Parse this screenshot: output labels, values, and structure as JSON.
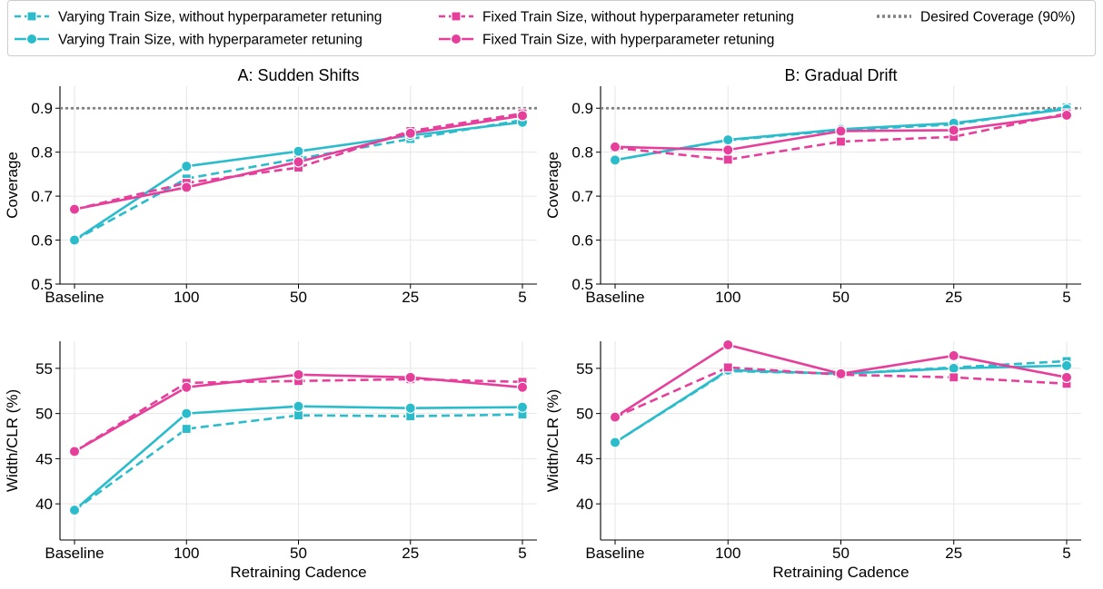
{
  "legend": {
    "position": "top",
    "entries": [
      {
        "label": "Varying Train Size, without hyperparameter retuning",
        "color": "#2bbccc",
        "dash": "dashed",
        "marker": "square"
      },
      {
        "label": "Varying Train Size, with hyperparameter retuning",
        "color": "#2bbccc",
        "dash": "solid",
        "marker": "circle"
      },
      {
        "label": "Fixed Train Size, without hyperparameter retuning",
        "color": "#e63f9b",
        "dash": "dashed",
        "marker": "square"
      },
      {
        "label": "Fixed Train Size, with hyperparameter retuning",
        "color": "#e63f9b",
        "dash": "solid",
        "marker": "circle"
      },
      {
        "label": "Desired Coverage (90%)",
        "color": "#808080",
        "dash": "dotted",
        "marker": "none"
      }
    ]
  },
  "chart_data": [
    {
      "type": "line",
      "title": "A: Sudden Shifts",
      "xlabel": "",
      "ylabel": "Coverage",
      "categories": [
        "Baseline",
        "100",
        "50",
        "25",
        "5"
      ],
      "ylim": [
        0.5,
        0.95
      ],
      "yticks": [
        "0.5",
        "0.6",
        "0.7",
        "0.8",
        "0.9"
      ],
      "grid": true,
      "reference_line": {
        "y": 0.9,
        "color": "#808080",
        "dash": "dotted"
      },
      "series": [
        {
          "values": [
            0.6,
            0.74,
            0.785,
            0.83,
            0.873
          ],
          "color": "#2bbccc",
          "dash": "dashed",
          "marker": "square"
        },
        {
          "values": [
            0.6,
            0.768,
            0.802,
            0.838,
            0.868
          ],
          "color": "#2bbccc",
          "dash": "solid",
          "marker": "circle"
        },
        {
          "values": [
            0.67,
            0.73,
            0.765,
            0.848,
            0.888
          ],
          "color": "#e63f9b",
          "dash": "dashed",
          "marker": "square"
        },
        {
          "values": [
            0.67,
            0.72,
            0.778,
            0.843,
            0.883
          ],
          "color": "#e63f9b",
          "dash": "solid",
          "marker": "circle"
        }
      ]
    },
    {
      "type": "line",
      "title": "B: Gradual Drift",
      "xlabel": "",
      "ylabel": "Coverage",
      "categories": [
        "Baseline",
        "100",
        "50",
        "25",
        "5"
      ],
      "ylim": [
        0.5,
        0.95
      ],
      "yticks": [
        "0.5",
        "0.6",
        "0.7",
        "0.8",
        "0.9"
      ],
      "grid": true,
      "reference_line": {
        "y": 0.9,
        "color": "#808080",
        "dash": "dotted"
      },
      "series": [
        {
          "values": [
            0.782,
            0.827,
            0.85,
            0.863,
            0.902
          ],
          "color": "#2bbccc",
          "dash": "dashed",
          "marker": "square"
        },
        {
          "values": [
            0.782,
            0.828,
            0.852,
            0.866,
            0.898
          ],
          "color": "#2bbccc",
          "dash": "solid",
          "marker": "circle"
        },
        {
          "values": [
            0.81,
            0.783,
            0.824,
            0.835,
            0.888
          ],
          "color": "#e63f9b",
          "dash": "dashed",
          "marker": "square"
        },
        {
          "values": [
            0.812,
            0.805,
            0.848,
            0.85,
            0.884
          ],
          "color": "#e63f9b",
          "dash": "solid",
          "marker": "circle"
        }
      ]
    },
    {
      "type": "line",
      "title": "",
      "xlabel": "Retraining Cadence",
      "ylabel": "Width/CLR (%)",
      "categories": [
        "Baseline",
        "100",
        "50",
        "25",
        "5"
      ],
      "ylim": [
        36,
        58
      ],
      "yticks": [
        "40",
        "45",
        "50",
        "55"
      ],
      "grid": true,
      "series": [
        {
          "values": [
            39.3,
            48.3,
            49.8,
            49.7,
            49.9
          ],
          "color": "#2bbccc",
          "dash": "dashed",
          "marker": "square"
        },
        {
          "values": [
            39.3,
            50.0,
            50.8,
            50.6,
            50.7
          ],
          "color": "#2bbccc",
          "dash": "solid",
          "marker": "circle"
        },
        {
          "values": [
            45.8,
            53.4,
            53.6,
            53.8,
            53.5
          ],
          "color": "#e63f9b",
          "dash": "dashed",
          "marker": "square"
        },
        {
          "values": [
            45.8,
            52.9,
            54.3,
            54.0,
            52.9
          ],
          "color": "#e63f9b",
          "dash": "solid",
          "marker": "circle"
        }
      ]
    },
    {
      "type": "line",
      "title": "",
      "xlabel": "Retraining Cadence",
      "ylabel": "Width/CLR (%)",
      "categories": [
        "Baseline",
        "100",
        "50",
        "25",
        "5"
      ],
      "ylim": [
        36,
        58
      ],
      "yticks": [
        "40",
        "45",
        "50",
        "55"
      ],
      "grid": true,
      "series": [
        {
          "values": [
            46.8,
            54.7,
            54.4,
            55.1,
            55.8
          ],
          "color": "#2bbccc",
          "dash": "dashed",
          "marker": "square"
        },
        {
          "values": [
            46.8,
            54.8,
            54.4,
            55.0,
            55.3
          ],
          "color": "#2bbccc",
          "dash": "solid",
          "marker": "circle"
        },
        {
          "values": [
            49.6,
            55.1,
            54.3,
            54.0,
            53.3
          ],
          "color": "#e63f9b",
          "dash": "dashed",
          "marker": "square"
        },
        {
          "values": [
            49.6,
            57.6,
            54.4,
            56.4,
            54.0
          ],
          "color": "#e63f9b",
          "dash": "solid",
          "marker": "circle"
        }
      ]
    }
  ]
}
